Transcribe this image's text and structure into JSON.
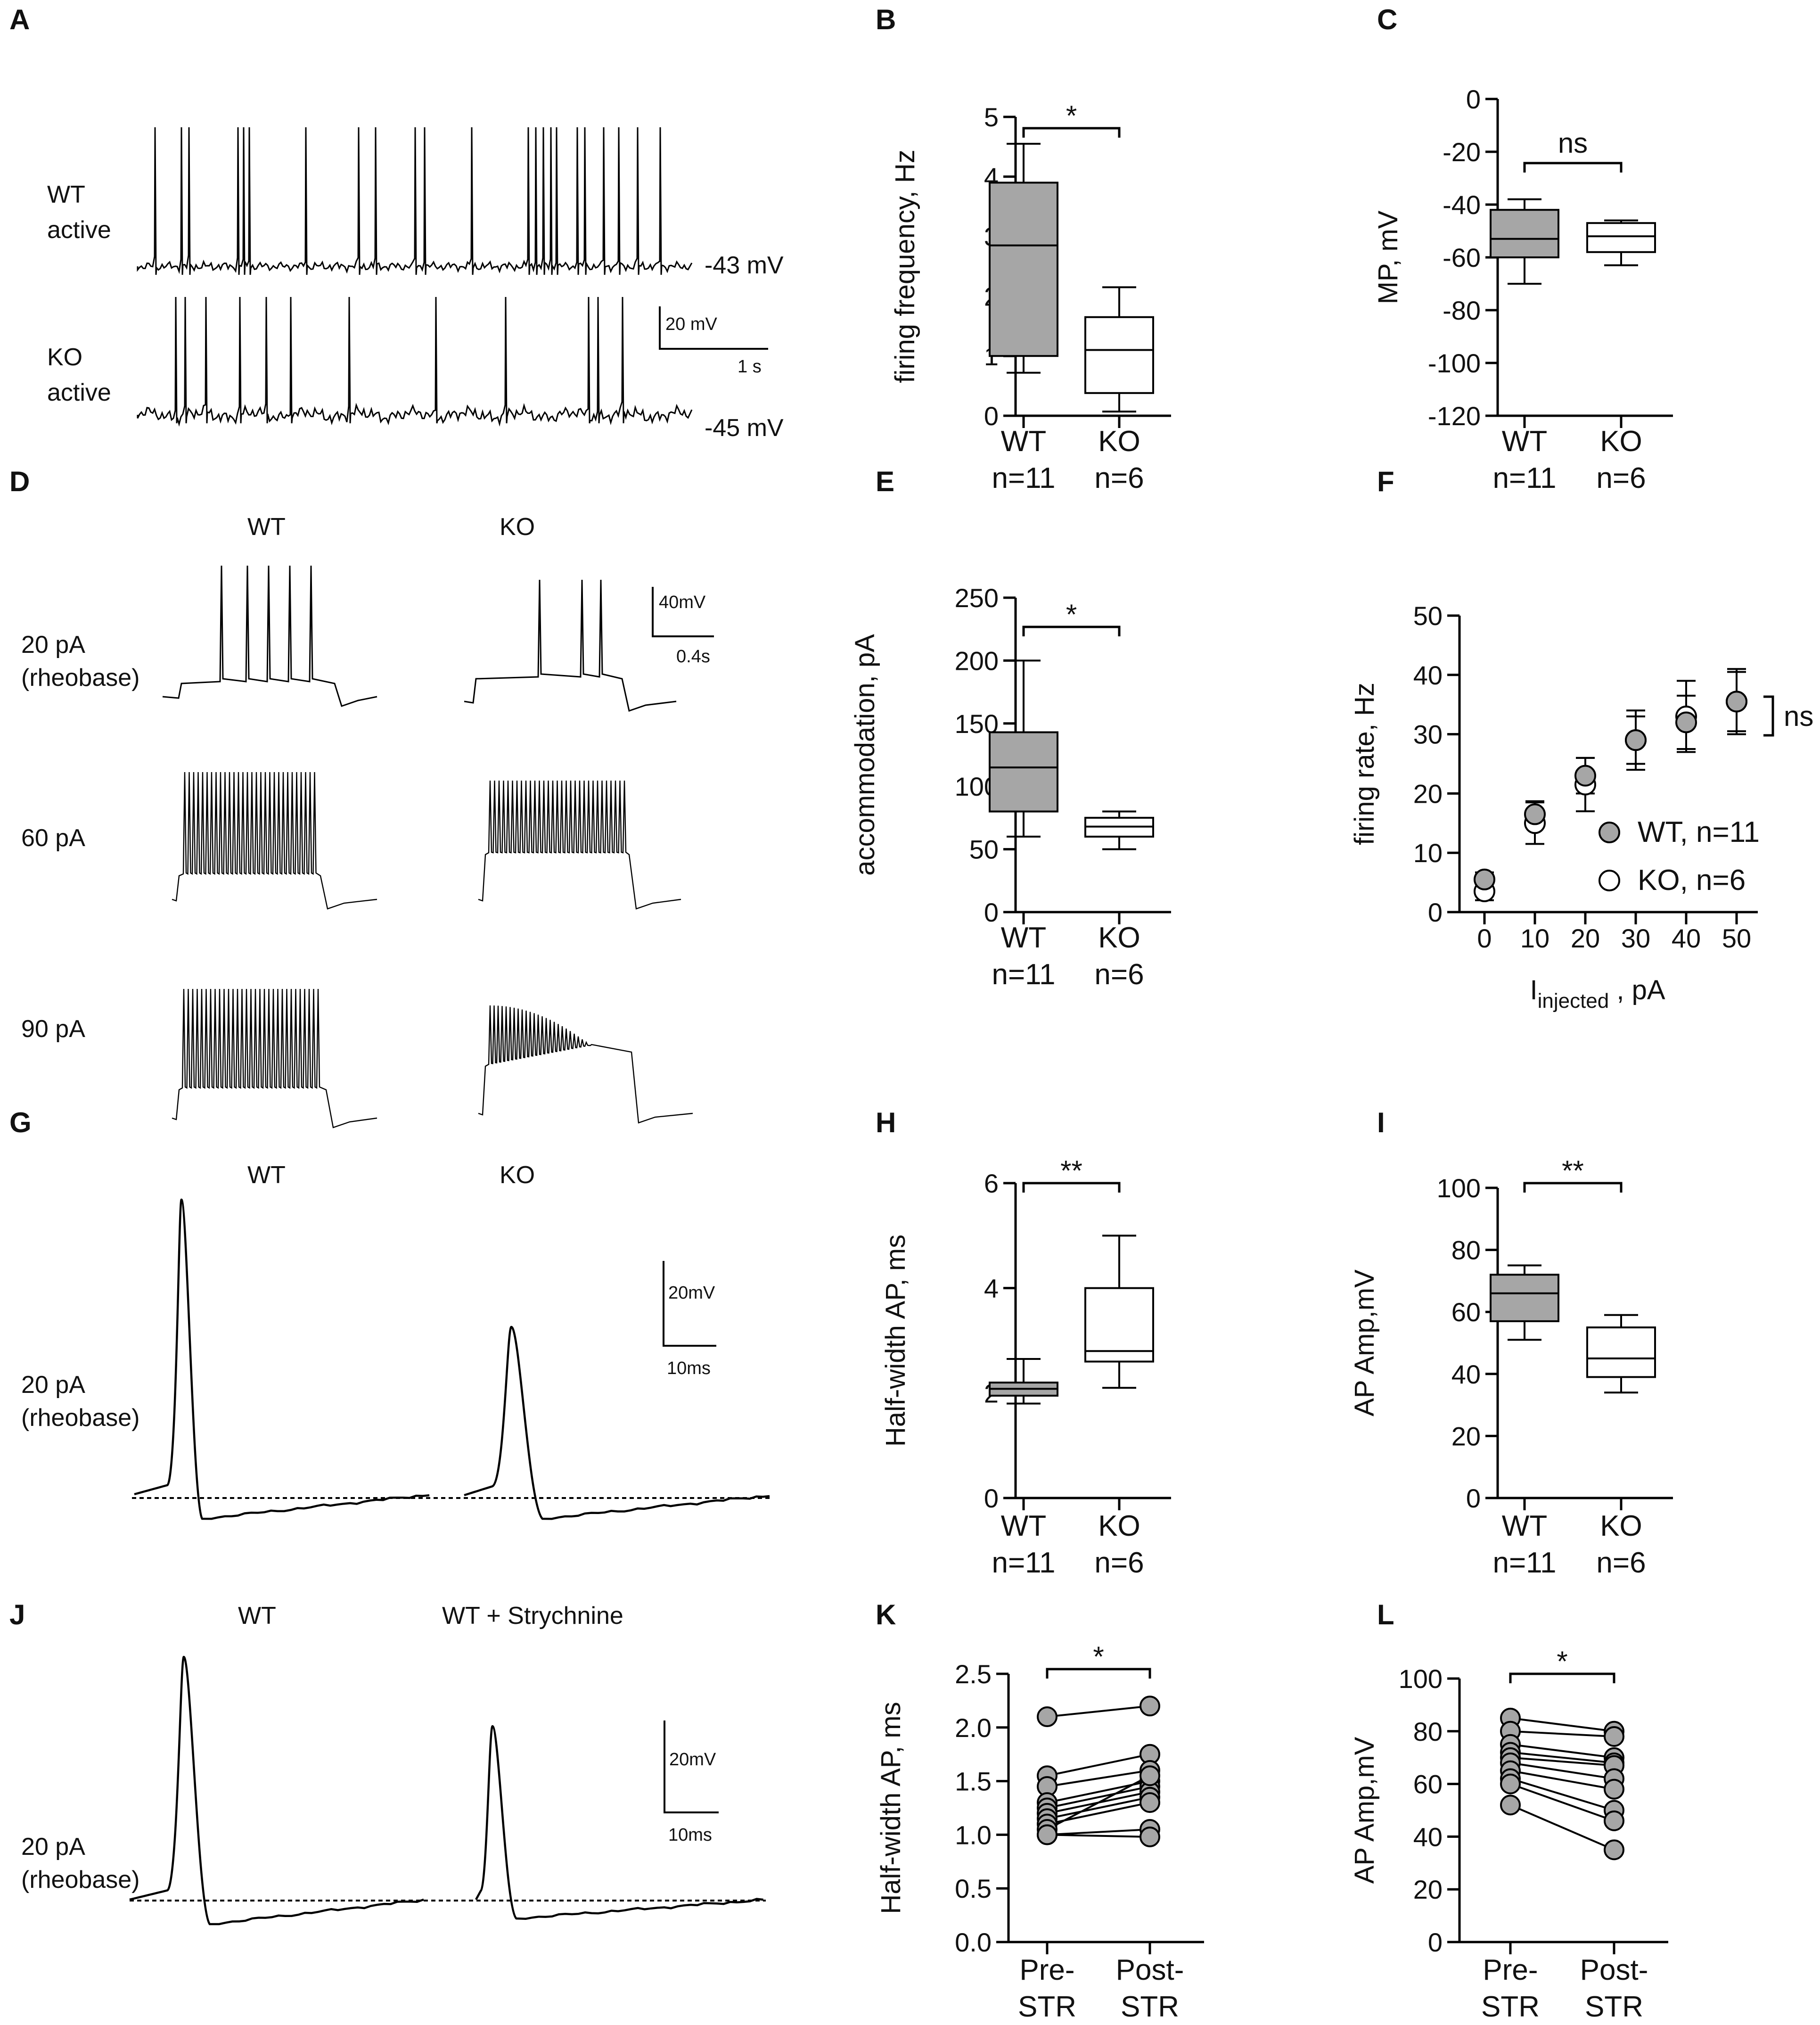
{
  "panels": {
    "A": "A",
    "B": "B",
    "C": "C",
    "D": "D",
    "E": "E",
    "F": "F",
    "G": "G",
    "H": "H",
    "I": "I",
    "J": "J",
    "K": "K",
    "L": "L"
  },
  "traces": {
    "A": {
      "wt_label": [
        "WT",
        "active"
      ],
      "ko_label": [
        "KO",
        "active"
      ],
      "wt_mp": "-43 mV",
      "ko_mp": "-45 mV",
      "scale_v": "20 mV",
      "scale_t": "1 s"
    },
    "D": {
      "wt_title": "WT",
      "ko_title": "KO",
      "rows": [
        [
          "20 pA",
          "(rheobase)"
        ],
        [
          "60 pA"
        ],
        [
          "90 pA"
        ]
      ],
      "scale_v": "40mV",
      "scale_t": "0.4s"
    },
    "G": {
      "wt_title": "WT",
      "ko_title": "KO",
      "row_label": [
        "20 pA",
        "(rheobase)"
      ],
      "scale_v": "20mV",
      "scale_t": "10ms"
    },
    "J": {
      "wt_title": "WT",
      "str_title": "WT + Strychnine",
      "row_label": [
        "20 pA",
        "(rheobase)"
      ],
      "scale_v": "20mV",
      "scale_t": "10ms"
    }
  },
  "chart_data": [
    {
      "panel": "B",
      "type": "box",
      "ylabel": "firing frequency, Hz",
      "ylim": [
        0,
        5
      ],
      "yticks": [
        0,
        1,
        2,
        3,
        4,
        5
      ],
      "groups": [
        {
          "label": [
            "WT",
            "n=11"
          ],
          "fill": "#a6a6a6",
          "min": 0.72,
          "q1": 1.0,
          "median": 2.85,
          "q3": 3.9,
          "max": 4.55
        },
        {
          "label": [
            "KO",
            "n=6"
          ],
          "fill": "#ffffff",
          "min": 0.07,
          "q1": 0.38,
          "median": 1.1,
          "q3": 1.65,
          "max": 2.15
        }
      ],
      "significance": "*"
    },
    {
      "panel": "C",
      "type": "box",
      "ylabel": "MP, mV",
      "ylim": [
        -120,
        0
      ],
      "yticks": [
        0,
        -20,
        -40,
        -60,
        -80,
        -100,
        -120
      ],
      "groups": [
        {
          "label": [
            "WT",
            "n=11"
          ],
          "fill": "#a6a6a6",
          "min": -70,
          "q1": -60,
          "median": -53,
          "q3": -42,
          "max": -38
        },
        {
          "label": [
            "KO",
            "n=6"
          ],
          "fill": "#ffffff",
          "min": -63,
          "q1": -58,
          "median": -52,
          "q3": -47,
          "max": -46
        }
      ],
      "significance": "ns"
    },
    {
      "panel": "E",
      "type": "box",
      "ylabel": "accommodation, pA",
      "ylim": [
        0,
        250
      ],
      "yticks": [
        0,
        50,
        100,
        150,
        200,
        250
      ],
      "groups": [
        {
          "label": [
            "WT",
            "n=11"
          ],
          "fill": "#a6a6a6",
          "min": 60,
          "q1": 80,
          "median": 115,
          "q3": 143,
          "max": 200
        },
        {
          "label": [
            "KO",
            "n=6"
          ],
          "fill": "#ffffff",
          "min": 50,
          "q1": 60,
          "median": 68,
          "q3": 75,
          "max": 80
        }
      ],
      "significance": "*"
    },
    {
      "panel": "F",
      "type": "scatter",
      "ylabel": "firing rate, Hz",
      "xlabel_main": "I",
      "xlabel_sub": "injected",
      "xlabel_tail": " , pA",
      "xlim": [
        -5,
        55
      ],
      "ylim": [
        0,
        50
      ],
      "xticks": [
        0,
        10,
        20,
        30,
        40,
        50
      ],
      "yticks": [
        0,
        10,
        20,
        30,
        40,
        50
      ],
      "legend_position": "right",
      "series": [
        {
          "name": "WT, n=11",
          "fill": "#a6a6a6",
          "x": [
            0,
            10,
            20,
            30,
            40,
            50
          ],
          "y": [
            5.5,
            16.5,
            23,
            29,
            32,
            35.5
          ],
          "err": [
            1.2,
            2.2,
            3.0,
            4.0,
            4.5,
            5.0
          ]
        },
        {
          "name": "KO, n=6",
          "fill": "#ffffff",
          "x": [
            0,
            10,
            20,
            30,
            40,
            50
          ],
          "y": [
            3.5,
            15,
            21.5,
            29,
            33,
            35.5
          ],
          "err": [
            1.5,
            3.5,
            4.5,
            5.0,
            6.0,
            5.5
          ]
        }
      ],
      "significance": "ns"
    },
    {
      "panel": "H",
      "type": "box",
      "ylabel": "Half-width AP, ms",
      "ylim": [
        0,
        6
      ],
      "yticks": [
        0,
        2,
        4,
        6
      ],
      "groups": [
        {
          "label": [
            "WT",
            "n=11"
          ],
          "fill": "#a6a6a6",
          "min": 1.8,
          "q1": 1.95,
          "median": 2.08,
          "q3": 2.2,
          "max": 2.65
        },
        {
          "label": [
            "KO",
            "n=6"
          ],
          "fill": "#ffffff",
          "min": 2.1,
          "q1": 2.6,
          "median": 2.8,
          "q3": 4.0,
          "max": 5.0
        }
      ],
      "significance": "**"
    },
    {
      "panel": "I",
      "type": "box",
      "ylabel": "AP Amp,mV",
      "ylim": [
        0,
        100
      ],
      "yticks": [
        0,
        20,
        40,
        60,
        80,
        100
      ],
      "groups": [
        {
          "label": [
            "WT",
            "n=11"
          ],
          "fill": "#a6a6a6",
          "min": 51,
          "q1": 57,
          "median": 66,
          "q3": 72,
          "max": 75
        },
        {
          "label": [
            "KO",
            "n=6"
          ],
          "fill": "#ffffff",
          "min": 34,
          "q1": 39,
          "median": 45,
          "q3": 55,
          "max": 59
        }
      ],
      "significance": "**"
    },
    {
      "panel": "K",
      "type": "paired",
      "ylabel": "Half-width AP, ms",
      "ylim": [
        0,
        2.5
      ],
      "yticks": [
        "0.0",
        "0.5",
        "1.0",
        "1.5",
        "2.0",
        "2.5"
      ],
      "categories": [
        [
          "Pre-",
          "STR"
        ],
        [
          "Post-",
          "STR"
        ]
      ],
      "pairs": [
        [
          2.1,
          2.2
        ],
        [
          1.55,
          1.75
        ],
        [
          1.45,
          1.6
        ],
        [
          1.3,
          1.5
        ],
        [
          1.25,
          1.45
        ],
        [
          1.2,
          1.4
        ],
        [
          1.15,
          1.35
        ],
        [
          1.1,
          1.3
        ],
        [
          1.05,
          1.55
        ],
        [
          1.0,
          1.05
        ],
        [
          1.0,
          0.98
        ]
      ],
      "significance": "*"
    },
    {
      "panel": "L",
      "type": "paired",
      "ylabel": "AP Amp,mV",
      "ylim": [
        0,
        100
      ],
      "yticks": [
        0,
        20,
        40,
        60,
        80,
        100
      ],
      "categories": [
        [
          "Pre-",
          "STR"
        ],
        [
          "Post-",
          "STR"
        ]
      ],
      "pairs": [
        [
          85,
          80
        ],
        [
          80,
          78
        ],
        [
          75,
          70
        ],
        [
          72,
          68
        ],
        [
          70,
          67
        ],
        [
          68,
          62
        ],
        [
          65,
          58
        ],
        [
          62,
          50
        ],
        [
          60,
          46
        ],
        [
          52,
          35
        ]
      ],
      "significance": "*"
    }
  ]
}
